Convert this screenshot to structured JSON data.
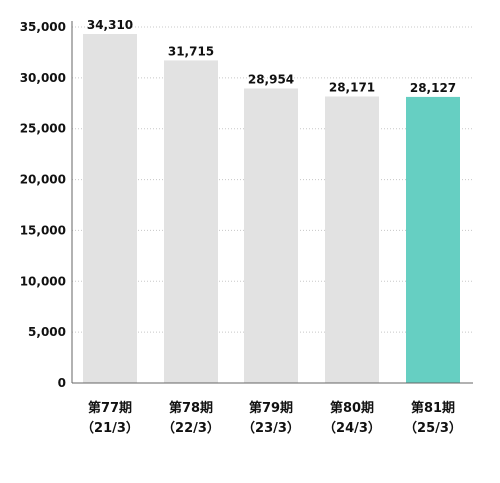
{
  "chart_data": {
    "type": "bar",
    "categories": [
      "第77期",
      "第78期",
      "第79期",
      "第80期",
      "第81期"
    ],
    "sublabels": [
      "（21/3）",
      "（22/3）",
      "（23/3）",
      "（24/3）",
      "（25/3）"
    ],
    "values": [
      34310,
      31715,
      28954,
      28171,
      28127
    ],
    "value_labels": [
      "34,310",
      "31,715",
      "28,954",
      "28,171",
      "28,127"
    ],
    "ylim": [
      0,
      35000
    ],
    "yticks": [
      0,
      5000,
      10000,
      15000,
      20000,
      25000,
      30000,
      35000
    ],
    "ytick_labels": [
      "0",
      "5,000",
      "10,000",
      "15,000",
      "20,000",
      "25,000",
      "30,000",
      "35,000"
    ],
    "grid": true,
    "title": "",
    "xlabel": "",
    "ylabel": "",
    "colors": {
      "bar": "#e2e2e2",
      "highlight": "#66cfc2",
      "grid": "#c8c8c8",
      "axis": "#666666"
    },
    "highlight_index": 4
  }
}
